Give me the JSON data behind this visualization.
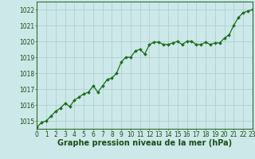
{
  "x": [
    0,
    0.5,
    1,
    1.5,
    2,
    2.5,
    3,
    3.5,
    4,
    4.5,
    5,
    5.5,
    6,
    6.5,
    7,
    7.5,
    8,
    8.5,
    9,
    9.5,
    10,
    10.5,
    11,
    11.5,
    12,
    12.5,
    13,
    13.5,
    14,
    14.5,
    15,
    15.5,
    16,
    16.5,
    17,
    17.5,
    18,
    18.5,
    19,
    19.5,
    20,
    20.5,
    21,
    21.5,
    22,
    22.5,
    23
  ],
  "y": [
    1014.6,
    1014.9,
    1015.0,
    1015.3,
    1015.6,
    1015.8,
    1016.1,
    1015.9,
    1016.3,
    1016.5,
    1016.7,
    1016.8,
    1017.2,
    1016.8,
    1017.2,
    1017.6,
    1017.7,
    1018.0,
    1018.7,
    1019.0,
    1019.0,
    1019.4,
    1019.5,
    1019.2,
    1019.8,
    1019.95,
    1019.95,
    1019.8,
    1019.8,
    1019.9,
    1020.0,
    1019.8,
    1020.0,
    1020.0,
    1019.8,
    1019.8,
    1019.95,
    1019.8,
    1019.9,
    1019.9,
    1020.2,
    1020.4,
    1021.0,
    1021.5,
    1021.8,
    1021.9,
    1022.0
  ],
  "xlim": [
    0,
    23
  ],
  "ylim": [
    1014.5,
    1022.5
  ],
  "yticks": [
    1015,
    1016,
    1017,
    1018,
    1019,
    1020,
    1021,
    1022
  ],
  "xticks": [
    0,
    1,
    2,
    3,
    4,
    5,
    6,
    7,
    8,
    9,
    10,
    11,
    12,
    13,
    14,
    15,
    16,
    17,
    18,
    19,
    20,
    21,
    22,
    23
  ],
  "xlabel": "Graphe pression niveau de la mer (hPa)",
  "line_color": "#1a6e1a",
  "marker_color": "#1a6e1a",
  "bg_color": "#cce8e8",
  "grid_color": "#aacccc",
  "axis_color": "#2d6e2d",
  "label_color": "#1a4e1a",
  "tick_fontsize": 5.5,
  "xlabel_fontsize": 7.0
}
